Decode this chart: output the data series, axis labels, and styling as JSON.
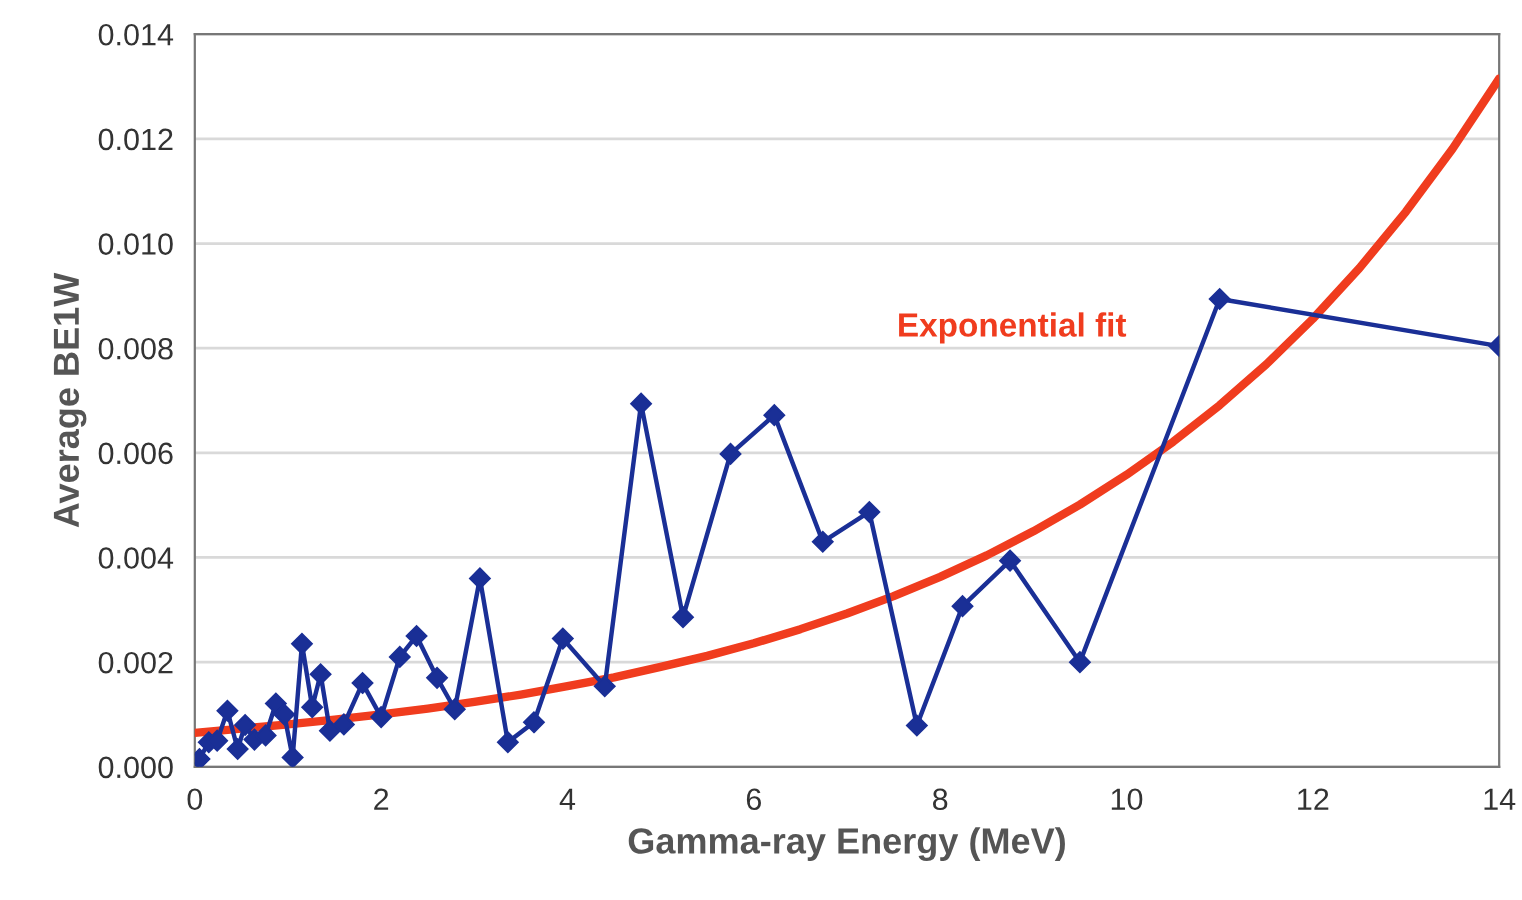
{
  "chart_data": {
    "type": "line",
    "xlabel": "Gamma-ray Energy (MeV)",
    "ylabel": "Average BE1W",
    "xlim": [
      0,
      14
    ],
    "xticks": [
      0,
      2,
      4,
      6,
      8,
      10,
      12,
      14
    ],
    "ylim": [
      0,
      0.014
    ],
    "yticks": [
      {
        "value": 0,
        "label": "0.000"
      },
      {
        "value": 0.002,
        "label": "0.002"
      },
      {
        "value": 0.004,
        "label": "0.004"
      },
      {
        "value": 0.006,
        "label": "0.006"
      },
      {
        "value": 0.008,
        "label": "0.008"
      },
      {
        "value": 0.01,
        "label": "0.010"
      },
      {
        "value": 0.012,
        "label": "0.012"
      },
      {
        "value": 0.014,
        "label": "0.014"
      }
    ],
    "grid": "y",
    "legend": false,
    "series": [
      {
        "color": "#1a2f96",
        "marker": "diamond",
        "x": [
          0.05,
          0.15,
          0.24,
          0.35,
          0.46,
          0.54,
          0.64,
          0.76,
          0.87,
          0.96,
          1.05,
          1.15,
          1.26,
          1.35,
          1.45,
          1.6,
          1.8,
          2.0,
          2.2,
          2.38,
          2.6,
          2.79,
          3.06,
          3.36,
          3.64,
          3.95,
          4.4,
          4.79,
          5.24,
          5.75,
          6.22,
          6.74,
          7.24,
          7.75,
          8.24,
          8.75,
          9.5,
          11.0,
          14.0
        ],
        "values": [
          0.00015,
          0.00047,
          0.0005,
          0.00107,
          0.00034,
          0.0008,
          0.00052,
          0.0006,
          0.00121,
          0.001,
          0.00018,
          0.00235,
          0.00114,
          0.00177,
          0.00069,
          0.00081,
          0.0016,
          0.00095,
          0.0021,
          0.0025,
          0.0017,
          0.0011,
          0.0036,
          0.00047,
          0.00085,
          0.00245,
          0.00154,
          0.00694,
          0.00286,
          0.00598,
          0.00672,
          0.0043,
          0.00487,
          0.00079,
          0.00307,
          0.00394,
          0.002,
          0.00894,
          0.00804
        ]
      },
      {
        "name": "Exponential fit",
        "color": "#f03c1e",
        "marker": "none",
        "x": [
          0,
          0.5,
          1,
          1.5,
          2,
          2.5,
          3,
          3.5,
          4,
          4.5,
          5,
          5.5,
          6,
          6.5,
          7,
          7.5,
          8,
          8.5,
          9,
          9.5,
          10,
          10.5,
          11,
          11.5,
          12,
          12.5,
          13,
          13.5,
          14
        ],
        "values": [
          0.00065,
          0.00073,
          0.00081,
          0.0009,
          0.001,
          0.00111,
          0.00124,
          0.00138,
          0.00154,
          0.00171,
          0.00191,
          0.00212,
          0.00236,
          0.00263,
          0.00293,
          0.00326,
          0.00363,
          0.00404,
          0.0045,
          0.00501,
          0.00558,
          0.00621,
          0.00691,
          0.00769,
          0.00856,
          0.00953,
          0.01061,
          0.01181,
          0.01315
        ]
      }
    ]
  }
}
